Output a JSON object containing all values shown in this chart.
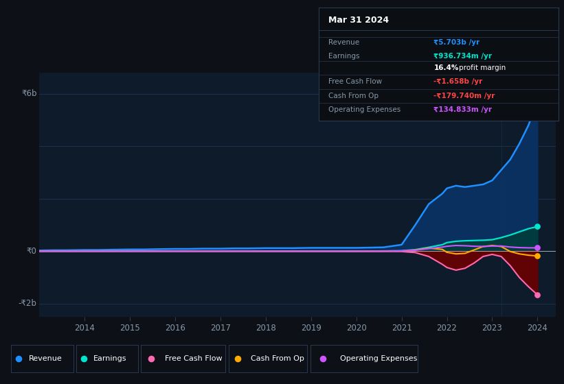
{
  "bg_color": "#0d1117",
  "plot_bg_color": "#0d1b2a",
  "grid_color": "#1e3050",
  "text_color": "#8899aa",
  "years": [
    2013.0,
    2013.3,
    2013.6,
    2014.0,
    2014.3,
    2014.6,
    2015.0,
    2015.3,
    2015.6,
    2016.0,
    2016.3,
    2016.6,
    2017.0,
    2017.3,
    2017.6,
    2018.0,
    2018.3,
    2018.6,
    2019.0,
    2019.3,
    2019.6,
    2020.0,
    2020.3,
    2020.6,
    2021.0,
    2021.3,
    2021.6,
    2021.9,
    2022.0,
    2022.2,
    2022.4,
    2022.6,
    2022.8,
    2023.0,
    2023.2,
    2023.4,
    2023.6,
    2023.8,
    2024.0
  ],
  "revenue": [
    0.03,
    0.04,
    0.04,
    0.05,
    0.05,
    0.06,
    0.07,
    0.07,
    0.08,
    0.09,
    0.09,
    0.1,
    0.1,
    0.11,
    0.11,
    0.12,
    0.12,
    0.12,
    0.13,
    0.13,
    0.13,
    0.13,
    0.14,
    0.15,
    0.25,
    1.0,
    1.8,
    2.2,
    2.4,
    2.5,
    2.45,
    2.5,
    2.55,
    2.7,
    3.1,
    3.5,
    4.1,
    4.8,
    5.7
  ],
  "earnings": [
    0.003,
    0.003,
    0.003,
    0.004,
    0.004,
    0.004,
    0.004,
    0.004,
    0.005,
    0.005,
    0.005,
    0.005,
    0.005,
    0.005,
    0.005,
    0.005,
    0.005,
    0.005,
    0.005,
    0.005,
    0.005,
    0.005,
    0.006,
    0.01,
    0.02,
    0.06,
    0.15,
    0.25,
    0.33,
    0.38,
    0.4,
    0.41,
    0.42,
    0.44,
    0.52,
    0.62,
    0.74,
    0.86,
    0.94
  ],
  "free_cash_flow": [
    0.001,
    0.001,
    0.001,
    0.001,
    0.001,
    0.001,
    0.001,
    0.001,
    0.001,
    0.001,
    0.001,
    0.001,
    0.001,
    0.001,
    0.001,
    0.001,
    0.001,
    0.001,
    0.001,
    0.001,
    0.001,
    -0.001,
    -0.001,
    -0.002,
    -0.01,
    -0.05,
    -0.2,
    -0.5,
    -0.62,
    -0.72,
    -0.65,
    -0.45,
    -0.2,
    -0.12,
    -0.2,
    -0.55,
    -1.0,
    -1.35,
    -1.66
  ],
  "cash_from_op": [
    0.001,
    0.001,
    0.001,
    0.001,
    0.001,
    0.001,
    0.001,
    0.001,
    0.001,
    0.001,
    0.001,
    0.001,
    0.001,
    0.001,
    0.001,
    0.001,
    0.001,
    0.001,
    0.001,
    0.001,
    0.001,
    0.001,
    0.001,
    0.001,
    0.01,
    0.05,
    0.12,
    0.07,
    -0.04,
    -0.1,
    -0.08,
    0.05,
    0.18,
    0.22,
    0.18,
    -0.01,
    -0.1,
    -0.15,
    -0.18
  ],
  "operating_expenses": [
    0.001,
    0.001,
    0.001,
    0.001,
    0.001,
    0.001,
    0.001,
    0.001,
    0.001,
    0.001,
    0.001,
    0.001,
    0.001,
    0.001,
    0.001,
    0.001,
    0.001,
    0.001,
    0.001,
    0.001,
    0.001,
    0.001,
    0.001,
    0.001,
    0.01,
    0.04,
    0.1,
    0.16,
    0.19,
    0.22,
    0.21,
    0.19,
    0.18,
    0.2,
    0.2,
    0.16,
    0.14,
    0.13,
    0.13
  ],
  "revenue_color": "#1e90ff",
  "earnings_color": "#00e5cc",
  "fcf_color": "#ff69b4",
  "cashop_color": "#ffaa00",
  "opex_color": "#cc55ff",
  "revenue_fill": "#0a3060",
  "earnings_fill": "#003d3d",
  "fcf_fill": "#6b0000",
  "cashop_fill": "#5a3000",
  "ylim": [
    -2.5,
    6.8
  ],
  "ytick_positions": [
    -2,
    0,
    6
  ],
  "ytick_labels": [
    "-₹2b",
    "₹0",
    "₹6b"
  ],
  "xticks": [
    2014,
    2015,
    2016,
    2017,
    2018,
    2019,
    2020,
    2021,
    2022,
    2023,
    2024
  ],
  "xlim": [
    2013.0,
    2024.4
  ],
  "box_title": "Mar 31 2024",
  "box_items": [
    {
      "label": "Revenue",
      "value": "₹5.703b /yr",
      "value_color": "#1e90ff"
    },
    {
      "label": "Earnings",
      "value": "₹936.734m /yr",
      "value_color": "#00e5cc"
    },
    {
      "label": "",
      "value": "16.4% profit margin",
      "value_color": "#ffffff"
    },
    {
      "label": "Free Cash Flow",
      "value": "-₹1.658b /yr",
      "value_color": "#ff4444"
    },
    {
      "label": "Cash From Op",
      "value": "-₹179.740m /yr",
      "value_color": "#ff4444"
    },
    {
      "label": "Operating Expenses",
      "value": "₹134.833m /yr",
      "value_color": "#cc55ff"
    }
  ],
  "legend_items": [
    {
      "label": "Revenue",
      "color": "#1e90ff"
    },
    {
      "label": "Earnings",
      "color": "#00e5cc"
    },
    {
      "label": "Free Cash Flow",
      "color": "#ff69b4"
    },
    {
      "label": "Cash From Op",
      "color": "#ffaa00"
    },
    {
      "label": "Operating Expenses",
      "color": "#cc55ff"
    }
  ]
}
